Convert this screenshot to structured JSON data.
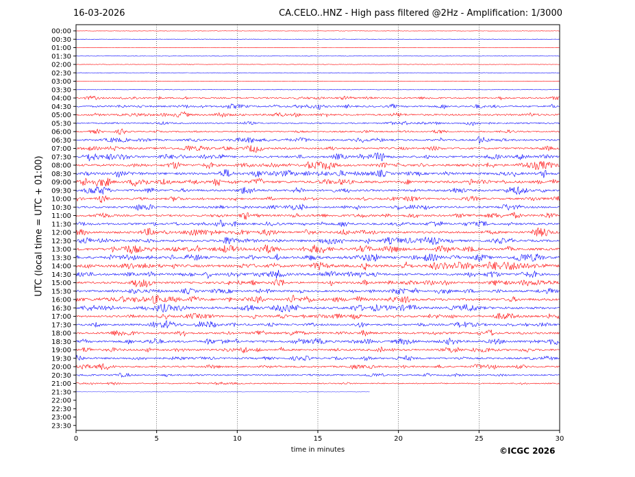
{
  "header": {
    "date": "16-03-2026",
    "title": "CA.CELO..HNZ - High pass filtered @2Hz - Amplification: 1/3000"
  },
  "footer": {
    "copyright": "©ICGC 2026"
  },
  "chart_data": {
    "type": "line",
    "title": "CA.CELO..HNZ - High pass filtered @2Hz - Amplification: 1/3000",
    "xlabel": "time in minutes",
    "ylabel": "UTC (local time = UTC + 01:00)",
    "xlim": [
      0,
      30
    ],
    "xticks": [
      0,
      5,
      10,
      15,
      20,
      25,
      30
    ],
    "grid": "vertical dotted at 5-minute ticks",
    "row_labels": [
      "00:00",
      "00:30",
      "01:00",
      "01:30",
      "02:00",
      "02:30",
      "03:00",
      "03:30",
      "04:00",
      "04:30",
      "05:00",
      "05:30",
      "06:00",
      "06:30",
      "07:00",
      "07:30",
      "08:00",
      "08:30",
      "09:00",
      "09:30",
      "10:00",
      "10:30",
      "11:00",
      "11:30",
      "12:00",
      "12:30",
      "13:00",
      "13:30",
      "14:00",
      "14:30",
      "15:00",
      "15:30",
      "16:00",
      "16:30",
      "17:00",
      "17:30",
      "18:00",
      "18:30",
      "19:00",
      "19:30",
      "20:00",
      "20:30",
      "21:00",
      "21:30",
      "22:00",
      "22:30",
      "23:00",
      "23:30"
    ],
    "series_colors": [
      "#ff0000",
      "#0000ff"
    ],
    "trace_end_minutes": 18.2,
    "trace_end_row": "21:30",
    "activity": [
      0.03,
      0.04,
      0.03,
      0.03,
      0.05,
      0.03,
      0.03,
      0.06,
      0.45,
      0.55,
      0.55,
      0.4,
      0.4,
      0.55,
      0.6,
      0.7,
      0.75,
      0.8,
      0.85,
      0.7,
      0.6,
      0.6,
      0.65,
      0.65,
      0.75,
      0.75,
      0.85,
      0.85,
      0.9,
      0.75,
      0.7,
      0.65,
      0.85,
      0.8,
      0.65,
      0.65,
      0.65,
      0.7,
      0.65,
      0.6,
      0.55,
      0.4,
      0.3,
      0.08
    ]
  }
}
